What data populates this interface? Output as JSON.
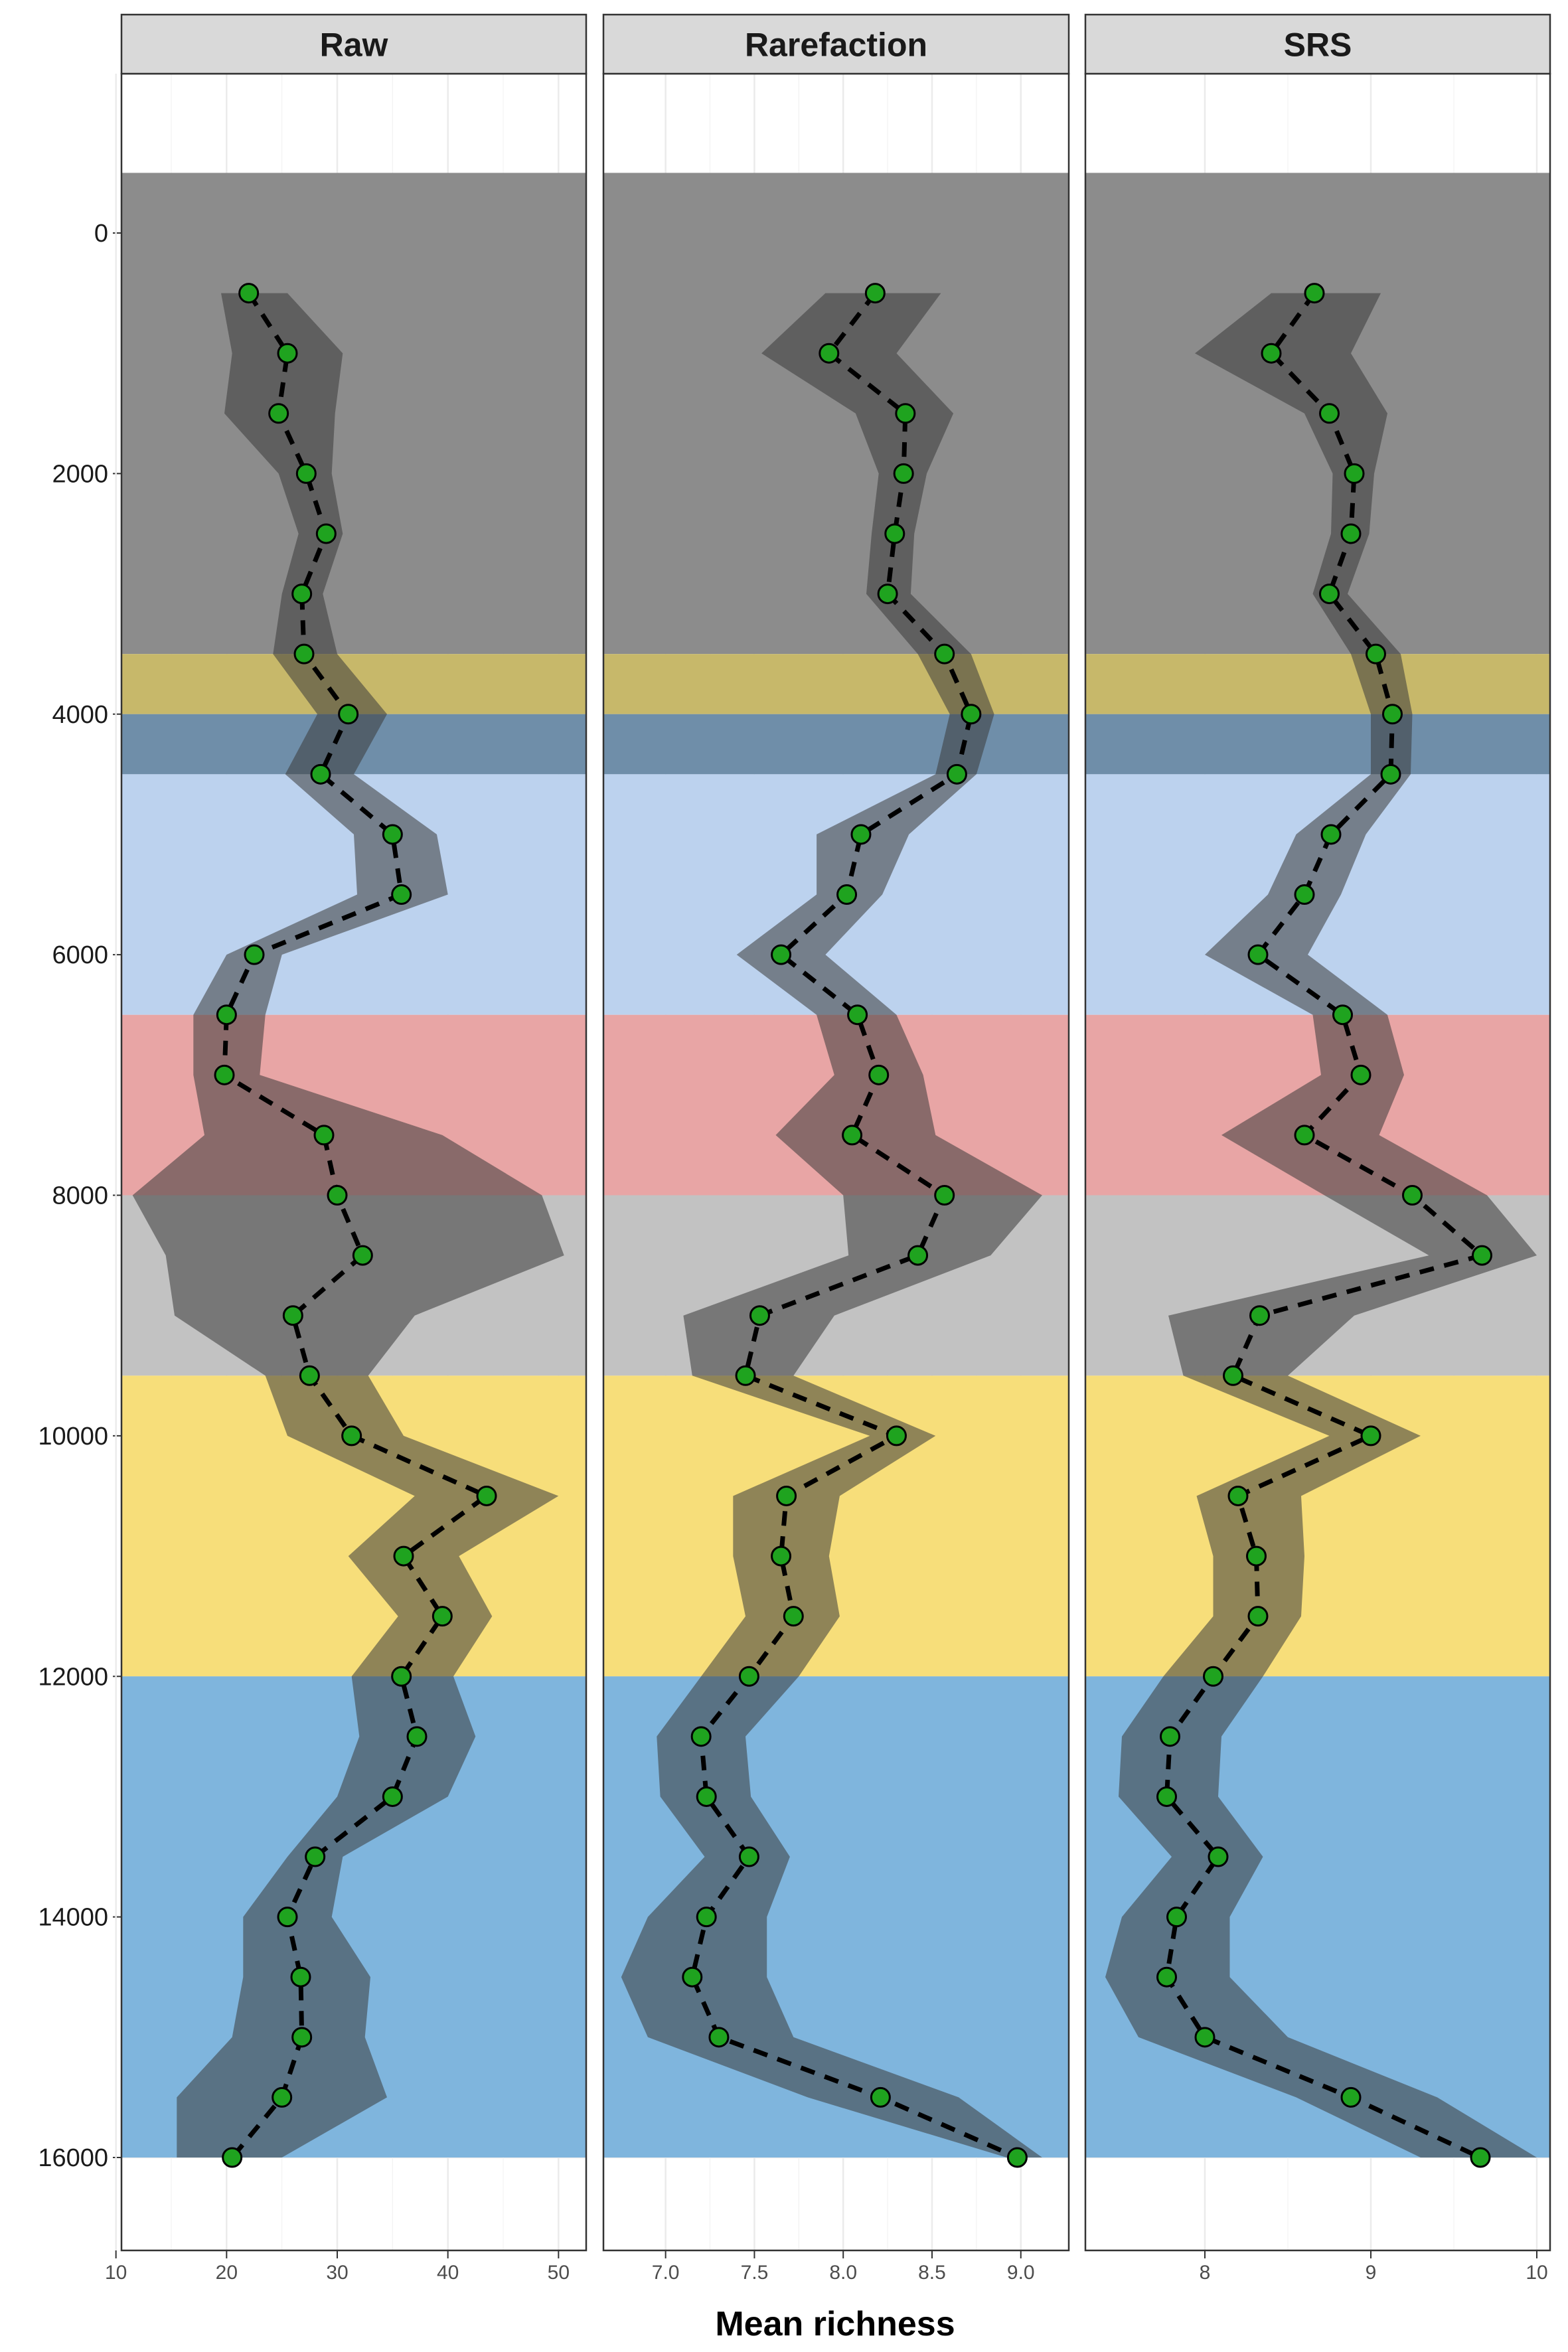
{
  "chart_data": {
    "type": "line",
    "xlabel": "Mean richness",
    "ylabel": "",
    "y_reversed": true,
    "ylim": [
      -1000,
      17000
    ],
    "y_ticks": [
      0,
      2000,
      4000,
      6000,
      8000,
      10000,
      12000,
      14000,
      16000
    ],
    "depths": [
      500,
      1000,
      1500,
      2000,
      2500,
      3000,
      3500,
      4000,
      4500,
      5000,
      5500,
      6000,
      6500,
      7000,
      7500,
      8000,
      8500,
      9000,
      9500,
      10000,
      10500,
      11000,
      11500,
      12000,
      12500,
      13000,
      13500,
      14000,
      14500,
      15000,
      15500,
      16000
    ],
    "bands": [
      {
        "from": -500,
        "to": 3500,
        "color": "#8c8c8c"
      },
      {
        "from": 3500,
        "to": 4000,
        "color": "#c7b86a"
      },
      {
        "from": 4000,
        "to": 4500,
        "color": "#6f8ea9"
      },
      {
        "from": 4500,
        "to": 6500,
        "color": "#bcd2ee"
      },
      {
        "from": 6500,
        "to": 8000,
        "color": "#e8a5a5"
      },
      {
        "from": 8000,
        "to": 9500,
        "color": "#c2c2c2"
      },
      {
        "from": 9500,
        "to": 12000,
        "color": "#f7de7a"
      },
      {
        "from": 12000,
        "to": 16000,
        "color": "#7fb5dd"
      }
    ],
    "colors": {
      "point": "#1fa31f",
      "line": "#000000",
      "ribbon": "#3a3a3a"
    },
    "panels": [
      {
        "name": "Raw",
        "xlim": [
          10.5,
          52.5
        ],
        "x_ticks": [
          10,
          20,
          30,
          40,
          50
        ],
        "x_tick_labels": [
          "10",
          "20",
          "30",
          "40",
          "50"
        ],
        "values": [
          22,
          25.5,
          24.7,
          27.2,
          29,
          26.8,
          27,
          31,
          28.5,
          35,
          35.8,
          22.5,
          20,
          19.8,
          28.8,
          30,
          32.3,
          26,
          27.5,
          31.3,
          43.5,
          36,
          39.5,
          35.8,
          37.2,
          35,
          28,
          25.5,
          26.7,
          26.8,
          25,
          20.5
        ],
        "lower": [
          19.5,
          20.5,
          19.8,
          24.7,
          26.5,
          25,
          24.2,
          28.2,
          25.3,
          31.5,
          31.8,
          20,
          17,
          17,
          18,
          11.5,
          14.5,
          15.3,
          23.5,
          25.5,
          37,
          31,
          35.5,
          31.3,
          32,
          30,
          25.5,
          21.5,
          21.5,
          20.5,
          15.5,
          15.5
        ],
        "upper": [
          25.5,
          30.5,
          29.8,
          29.5,
          30.5,
          28.7,
          30,
          34.5,
          31.5,
          39,
          40,
          25,
          23.5,
          23,
          39.5,
          48.5,
          50.5,
          37,
          32.8,
          36,
          50,
          41,
          44,
          40.5,
          42.5,
          40,
          30.5,
          29.5,
          33,
          32.5,
          34.5,
          25
        ]
      },
      {
        "name": "Rarefaction",
        "xlim": [
          6.65,
          9.27
        ],
        "x_ticks": [
          7.0,
          7.5,
          8.0,
          8.5,
          9.0
        ],
        "x_tick_labels": [
          "7.0",
          "7.5",
          "8.0",
          "8.5",
          "9.0"
        ],
        "values": [
          8.18,
          7.92,
          8.35,
          8.34,
          8.29,
          8.25,
          8.57,
          8.72,
          8.64,
          8.1,
          8.02,
          7.65,
          8.08,
          8.2,
          8.05,
          8.57,
          8.42,
          7.53,
          7.45,
          8.3,
          7.68,
          7.65,
          7.72,
          7.47,
          7.2,
          7.23,
          7.47,
          7.23,
          7.15,
          7.3,
          8.21,
          8.98
        ],
        "lower": [
          7.9,
          7.54,
          8.07,
          8.2,
          8.16,
          8.13,
          8.42,
          8.6,
          8.52,
          7.85,
          7.85,
          7.4,
          7.85,
          7.95,
          7.62,
          8.0,
          8.03,
          7.1,
          7.15,
          8.15,
          7.38,
          7.38,
          7.45,
          7.2,
          6.95,
          6.97,
          7.22,
          6.9,
          6.75,
          6.9,
          7.8,
          8.92
        ],
        "upper": [
          8.55,
          8.3,
          8.62,
          8.47,
          8.4,
          8.38,
          8.72,
          8.85,
          8.75,
          8.37,
          8.22,
          7.9,
          8.3,
          8.45,
          8.52,
          9.12,
          8.83,
          7.95,
          7.72,
          8.52,
          7.98,
          7.92,
          7.98,
          7.75,
          7.45,
          7.48,
          7.7,
          7.57,
          7.57,
          7.72,
          8.65,
          9.12
        ]
      },
      {
        "name": "SRS",
        "xlim": [
          7.28,
          10.08
        ],
        "x_ticks": [
          8,
          9,
          10
        ],
        "x_tick_labels": [
          "8",
          "9",
          "10"
        ],
        "values": [
          8.66,
          8.4,
          8.75,
          8.9,
          8.88,
          8.75,
          9.03,
          9.13,
          9.12,
          8.76,
          8.6,
          8.32,
          8.83,
          8.94,
          8.6,
          9.25,
          9.67,
          8.33,
          8.17,
          9.0,
          8.2,
          8.31,
          8.32,
          8.05,
          7.79,
          7.77,
          8.08,
          7.83,
          7.77,
          8.0,
          8.88,
          9.66
        ],
        "lower": [
          8.4,
          7.94,
          8.6,
          8.77,
          8.76,
          8.65,
          8.88,
          9.0,
          9.0,
          8.55,
          8.38,
          8.0,
          8.65,
          8.7,
          8.1,
          8.72,
          9.35,
          7.78,
          7.87,
          8.75,
          7.95,
          8.05,
          8.05,
          7.75,
          7.5,
          7.48,
          7.8,
          7.5,
          7.4,
          7.6,
          8.55,
          9.3
        ],
        "upper": [
          9.06,
          8.88,
          9.1,
          9.02,
          8.99,
          8.86,
          9.18,
          9.25,
          9.24,
          8.97,
          8.82,
          8.62,
          9.1,
          9.2,
          9.05,
          9.7,
          10.0,
          8.9,
          8.5,
          9.3,
          8.58,
          8.6,
          8.58,
          8.35,
          8.1,
          8.08,
          8.35,
          8.15,
          8.15,
          8.5,
          9.4,
          10.0
        ]
      }
    ]
  }
}
